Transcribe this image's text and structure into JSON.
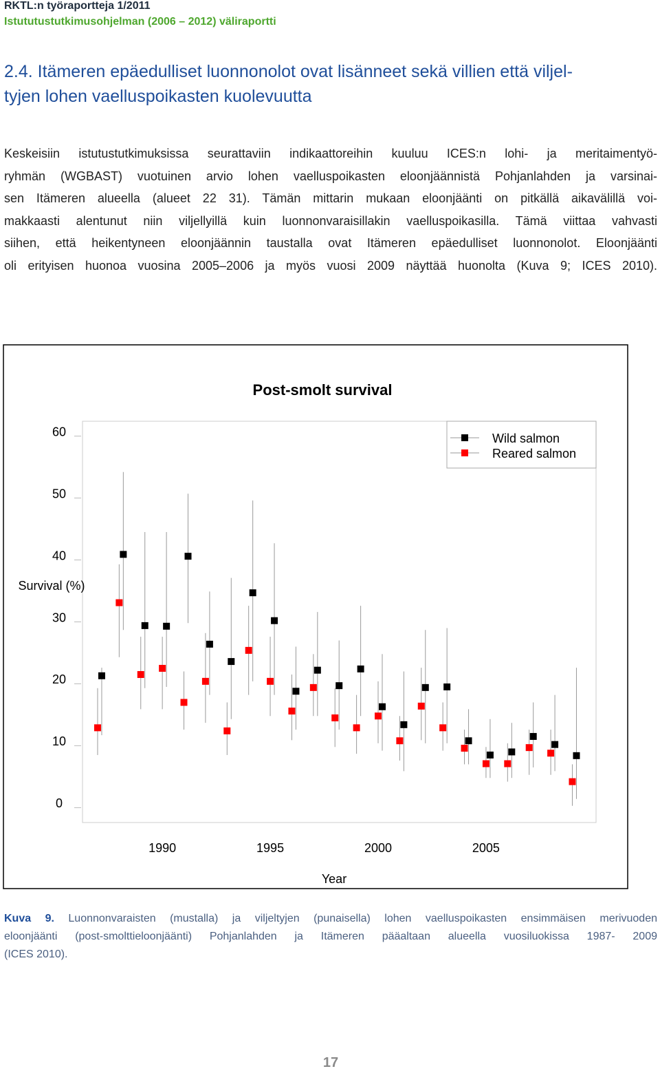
{
  "header": {
    "series": "RKTL:n työraportteja 1/2011",
    "report": "Istututustutkimusohjelman (2006 – 2012) väliraportti"
  },
  "heading": [
    "2.4. Itämeren epäedulliset luonnonolot ovat lisänneet sekä villien että viljel-",
    "tyjen lohen vaelluspoikasten kuolevuutta"
  ],
  "body": [
    "Keskeisiin istutustutkimuksissa seurattaviin indikaattoreihin kuuluu ICES:n lohi- ja meritaimentyö-",
    "ryhmän (WGBAST) vuotuinen arvio lohen vaelluspoikasten eloonjäännistä Pohjanlahden ja varsinai-",
    "sen Itämeren alueella (alueet 22 31). Tämän mittarin mukaan eloonjäänti on pitkällä aikavälillä voi-",
    "makkaasti alentunut niin viljellyillä kuin luonnonvaraisillakin vaelluspoikasilla. Tämä viittaa vahvasti",
    "siihen, että heikentyneen eloonjäännin taustalla ovat Itämeren epäedulliset luonnonolot. Eloonjäänti",
    "oli erityisen huonoa vuosina 2005–2006 ja myös vuosi 2009 näyttää huonolta (Kuva 9; ICES 2010)."
  ],
  "chart_data": {
    "type": "scatter",
    "title": "Post-smolt survival",
    "x_label": "Year",
    "y_label": "Survival (%)",
    "x": [
      1987,
      1988,
      1989,
      1990,
      1991,
      1992,
      1993,
      1994,
      1995,
      1996,
      1997,
      1998,
      1999,
      2000,
      2001,
      2002,
      2003,
      2004,
      2005,
      2006,
      2007,
      2008,
      2009
    ],
    "series": [
      {
        "name": "Wild salmon",
        "color": "#000000",
        "values": [
          21.3,
          40.9,
          29.4,
          29.3,
          40.6,
          26.4,
          23.6,
          34.7,
          30.2,
          18.8,
          22.2,
          19.7,
          22.4,
          16.3,
          13.4,
          19.4,
          19.5,
          10.8,
          8.5,
          9.0,
          11.5,
          10.2,
          8.4
        ],
        "upper": [
          22.6,
          54.2,
          44.5,
          44.5,
          50.7,
          34.9,
          37.1,
          49.6,
          42.7,
          26.0,
          31.6,
          27.0,
          32.6,
          24.8,
          22.0,
          28.7,
          29.0,
          15.9,
          14.3,
          13.7,
          17.0,
          18.2,
          22.6
        ],
        "lower": [
          11.7,
          28.7,
          19.3,
          19.5,
          29.8,
          18.2,
          14.3,
          20.4,
          18.2,
          12.6,
          14.8,
          12.6,
          14.8,
          9.2,
          5.9,
          10.4,
          10.4,
          7.0,
          4.8,
          4.8,
          6.5,
          5.9,
          1.4
        ]
      },
      {
        "name": "Reared salmon",
        "color": "#ff0000",
        "values": [
          12.9,
          33.1,
          21.5,
          22.5,
          17.0,
          20.4,
          12.4,
          25.4,
          20.4,
          15.6,
          19.4,
          14.5,
          12.9,
          14.8,
          10.8,
          16.4,
          12.9,
          9.6,
          7.1,
          7.1,
          9.7,
          8.8,
          4.2
        ],
        "upper": [
          19.3,
          39.3,
          27.6,
          27.6,
          22.0,
          28.2,
          17.0,
          32.6,
          27.6,
          21.5,
          24.8,
          19.3,
          18.2,
          20.4,
          14.8,
          22.6,
          17.0,
          12.6,
          9.8,
          10.4,
          12.6,
          12.6,
          7.0
        ],
        "lower": [
          8.5,
          24.3,
          15.9,
          15.9,
          12.6,
          13.7,
          8.5,
          18.2,
          14.8,
          10.9,
          14.8,
          9.8,
          8.7,
          10.4,
          7.6,
          10.9,
          9.2,
          7.0,
          4.8,
          4.2,
          5.3,
          5.3,
          0.3
        ]
      }
    ],
    "xlim": [
      1986.3,
      2010.1
    ],
    "xticks": [
      1990,
      1995,
      2000,
      2005
    ],
    "ylim": [
      -2.4,
      62.4
    ],
    "yticks": [
      0,
      10,
      20,
      30,
      40,
      50,
      60
    ],
    "legend": "top-right"
  },
  "caption": {
    "label": "Kuva 9.",
    "lines": [
      "Luonnonvaraisten (mustalla) ja viljeltyjen (punaisella) lohen vaelluspoikasten ensimmäisen merivuoden",
      "eloonjäänti (post-smolttieloonjäänti) Pohjanlahden ja Itämeren pääaltaan alueella vuosiluokissa 1987- 2009",
      "(ICES 2010)."
    ]
  },
  "page_number": "17"
}
